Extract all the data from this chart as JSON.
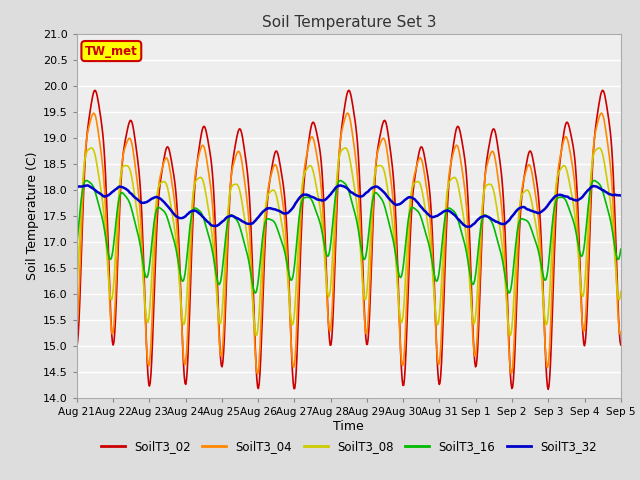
{
  "title": "Soil Temperature Set 3",
  "xlabel": "Time",
  "ylabel": "Soil Temperature (C)",
  "ylim": [
    14.0,
    21.0
  ],
  "yticks": [
    14.0,
    14.5,
    15.0,
    15.5,
    16.0,
    16.5,
    17.0,
    17.5,
    18.0,
    18.5,
    19.0,
    19.5,
    20.0,
    20.5,
    21.0
  ],
  "annotation_text": "TW_met",
  "annotation_color": "#cc0000",
  "annotation_bg": "#ffff00",
  "series_names": [
    "SoilT3_02",
    "SoilT3_04",
    "SoilT3_08",
    "SoilT3_16",
    "SoilT3_32"
  ],
  "series_colors": [
    "#cc0000",
    "#ff8800",
    "#cccc00",
    "#00bb00",
    "#0000cc"
  ],
  "series_lw": [
    1.2,
    1.2,
    1.2,
    1.2,
    1.8
  ],
  "bg_color": "#dddddd",
  "plot_bg_color": "#eeeeee",
  "x_labels": [
    "Aug 21",
    "Aug 22",
    "Aug 23",
    "Aug 24",
    "Aug 25",
    "Aug 26",
    "Aug 27",
    "Aug 28",
    "Aug 29",
    "Aug 30",
    "Aug 31",
    "Sep 1",
    "Sep 2",
    "Sep 3",
    "Sep 4",
    "Sep 5"
  ],
  "figsize": [
    6.4,
    4.8
  ],
  "dpi": 100
}
